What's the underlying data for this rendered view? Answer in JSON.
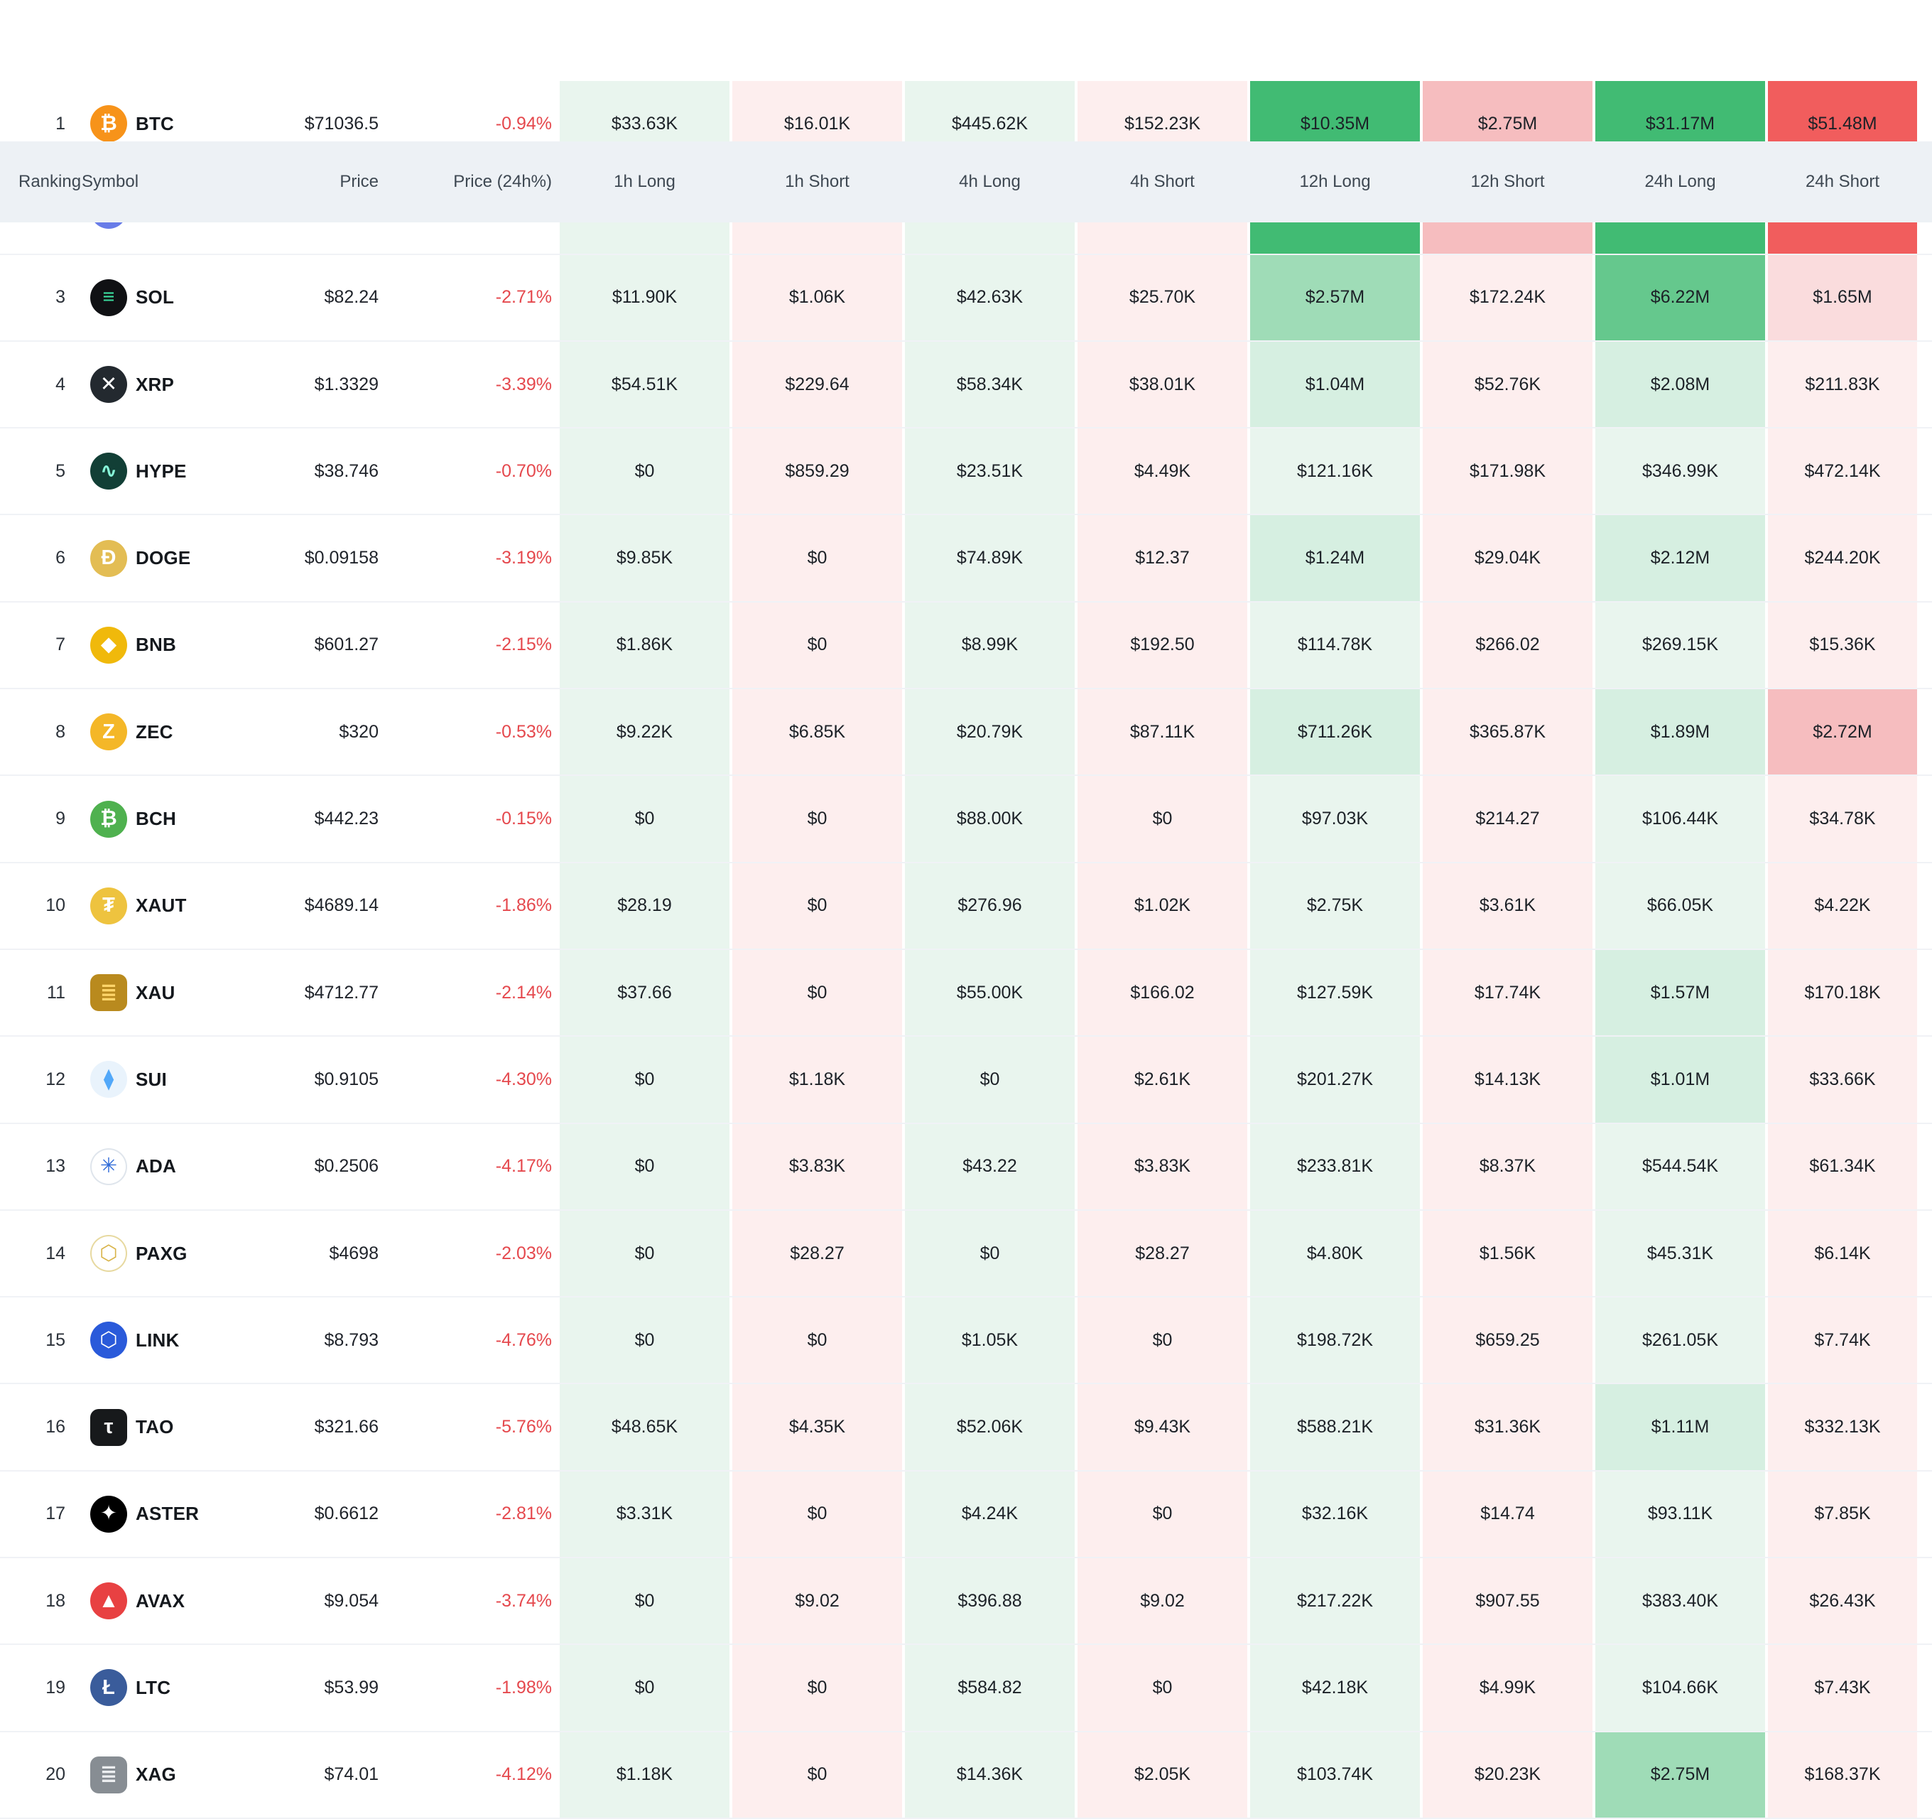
{
  "colors": {
    "long_base": "#e9f5ee",
    "long_strong": "#41bb73",
    "short_base": "#fdeeee",
    "short_strong": "#f15d5d",
    "negative_change": "#e5484d",
    "header_bg": "#edf1f5"
  },
  "columns": [
    {
      "key": "ranking",
      "label": "Ranking"
    },
    {
      "key": "symbol",
      "label": "Symbol"
    },
    {
      "key": "price",
      "label": "Price"
    },
    {
      "key": "change",
      "label": "Price (24h%)"
    },
    {
      "key": "1h-long",
      "label": "1h Long"
    },
    {
      "key": "1h-short",
      "label": "1h Short"
    },
    {
      "key": "4h-long",
      "label": "4h Long"
    },
    {
      "key": "4h-short",
      "label": "4h Short"
    },
    {
      "key": "12h-long",
      "label": "12h Long"
    },
    {
      "key": "12h-short",
      "label": "12h Short"
    },
    {
      "key": "24h-long",
      "label": "24h Long"
    },
    {
      "key": "24h-short",
      "label": "24h Short"
    }
  ],
  "rows": [
    {
      "rank": "1",
      "symbol": "BTC",
      "icon": {
        "shape": "circle",
        "bg": "#f7931a",
        "fg": "#ffffff",
        "glyph": "₿"
      },
      "price": "$71036.5",
      "change": "-0.94%",
      "cells": [
        {
          "v": "$33.63K",
          "c": "g0"
        },
        {
          "v": "$16.01K",
          "c": "r0"
        },
        {
          "v": "$445.62K",
          "c": "g0"
        },
        {
          "v": "$152.23K",
          "c": "r0"
        },
        {
          "v": "$10.35M",
          "c": "g4"
        },
        {
          "v": "$2.75M",
          "c": "r2"
        },
        {
          "v": "$31.17M",
          "c": "g4"
        },
        {
          "v": "$51.48M",
          "c": "r4"
        }
      ]
    },
    {
      "rank": "",
      "symbol": "",
      "icon": {
        "shape": "circle",
        "bg": "#687ce8",
        "fg": "#ffffff",
        "glyph": ""
      },
      "price": "",
      "change": "",
      "cells": [
        {
          "v": "",
          "c": "g0"
        },
        {
          "v": "",
          "c": "r0"
        },
        {
          "v": "",
          "c": "g0"
        },
        {
          "v": "",
          "c": "r0"
        },
        {
          "v": "",
          "c": "g4"
        },
        {
          "v": "",
          "c": "r2"
        },
        {
          "v": "",
          "c": "g4"
        },
        {
          "v": "",
          "c": "r4"
        }
      ]
    },
    {
      "rank": "3",
      "symbol": "SOL",
      "icon": {
        "shape": "circle",
        "bg": "#101114",
        "fg": "#3be0a0",
        "glyph": "≡"
      },
      "price": "$82.24",
      "change": "-2.71%",
      "cells": [
        {
          "v": "$11.90K",
          "c": "g0"
        },
        {
          "v": "$1.06K",
          "c": "r0"
        },
        {
          "v": "$42.63K",
          "c": "g0"
        },
        {
          "v": "$25.70K",
          "c": "r0"
        },
        {
          "v": "$2.57M",
          "c": "g2"
        },
        {
          "v": "$172.24K",
          "c": "r0"
        },
        {
          "v": "$6.22M",
          "c": "g3"
        },
        {
          "v": "$1.65M",
          "c": "r1"
        }
      ]
    },
    {
      "rank": "4",
      "symbol": "XRP",
      "icon": {
        "shape": "circle",
        "bg": "#23292f",
        "fg": "#ffffff",
        "glyph": "✕"
      },
      "price": "$1.3329",
      "change": "-3.39%",
      "cells": [
        {
          "v": "$54.51K",
          "c": "g0"
        },
        {
          "v": "$229.64",
          "c": "r0"
        },
        {
          "v": "$58.34K",
          "c": "g0"
        },
        {
          "v": "$38.01K",
          "c": "r0"
        },
        {
          "v": "$1.04M",
          "c": "g1"
        },
        {
          "v": "$52.76K",
          "c": "r0"
        },
        {
          "v": "$2.08M",
          "c": "g1"
        },
        {
          "v": "$211.83K",
          "c": "r0"
        }
      ]
    },
    {
      "rank": "5",
      "symbol": "HYPE",
      "icon": {
        "shape": "circle",
        "bg": "#123f36",
        "fg": "#87f5d8",
        "glyph": "∿"
      },
      "price": "$38.746",
      "change": "-0.70%",
      "cells": [
        {
          "v": "$0",
          "c": "g0"
        },
        {
          "v": "$859.29",
          "c": "r0"
        },
        {
          "v": "$23.51K",
          "c": "g0"
        },
        {
          "v": "$4.49K",
          "c": "r0"
        },
        {
          "v": "$121.16K",
          "c": "g0"
        },
        {
          "v": "$171.98K",
          "c": "r0"
        },
        {
          "v": "$346.99K",
          "c": "g0"
        },
        {
          "v": "$472.14K",
          "c": "r0"
        }
      ]
    },
    {
      "rank": "6",
      "symbol": "DOGE",
      "icon": {
        "shape": "circle",
        "bg": "#e3bd54",
        "fg": "#ffffff",
        "glyph": "Ð"
      },
      "price": "$0.09158",
      "change": "-3.19%",
      "cells": [
        {
          "v": "$9.85K",
          "c": "g0"
        },
        {
          "v": "$0",
          "c": "r0"
        },
        {
          "v": "$74.89K",
          "c": "g0"
        },
        {
          "v": "$12.37",
          "c": "r0"
        },
        {
          "v": "$1.24M",
          "c": "g1"
        },
        {
          "v": "$29.04K",
          "c": "r0"
        },
        {
          "v": "$2.12M",
          "c": "g1"
        },
        {
          "v": "$244.20K",
          "c": "r0"
        }
      ]
    },
    {
      "rank": "7",
      "symbol": "BNB",
      "icon": {
        "shape": "circle",
        "bg": "#f0b90b",
        "fg": "#ffffff",
        "glyph": "◆"
      },
      "price": "$601.27",
      "change": "-2.15%",
      "cells": [
        {
          "v": "$1.86K",
          "c": "g0"
        },
        {
          "v": "$0",
          "c": "r0"
        },
        {
          "v": "$8.99K",
          "c": "g0"
        },
        {
          "v": "$192.50",
          "c": "r0"
        },
        {
          "v": "$114.78K",
          "c": "g0"
        },
        {
          "v": "$266.02",
          "c": "r0"
        },
        {
          "v": "$269.15K",
          "c": "g0"
        },
        {
          "v": "$15.36K",
          "c": "r0"
        }
      ]
    },
    {
      "rank": "8",
      "symbol": "ZEC",
      "icon": {
        "shape": "circle",
        "bg": "#f4b728",
        "fg": "#ffffff",
        "glyph": "Z"
      },
      "price": "$320",
      "change": "-0.53%",
      "cells": [
        {
          "v": "$9.22K",
          "c": "g0"
        },
        {
          "v": "$6.85K",
          "c": "r0"
        },
        {
          "v": "$20.79K",
          "c": "g0"
        },
        {
          "v": "$87.11K",
          "c": "r0"
        },
        {
          "v": "$711.26K",
          "c": "g1"
        },
        {
          "v": "$365.87K",
          "c": "r0"
        },
        {
          "v": "$1.89M",
          "c": "g1"
        },
        {
          "v": "$2.72M",
          "c": "r2"
        }
      ]
    },
    {
      "rank": "9",
      "symbol": "BCH",
      "icon": {
        "shape": "circle",
        "bg": "#4fb14f",
        "fg": "#ffffff",
        "glyph": "₿"
      },
      "price": "$442.23",
      "change": "-0.15%",
      "cells": [
        {
          "v": "$0",
          "c": "g0"
        },
        {
          "v": "$0",
          "c": "r0"
        },
        {
          "v": "$88.00K",
          "c": "g0"
        },
        {
          "v": "$0",
          "c": "r0"
        },
        {
          "v": "$97.03K",
          "c": "g0"
        },
        {
          "v": "$214.27",
          "c": "r0"
        },
        {
          "v": "$106.44K",
          "c": "g0"
        },
        {
          "v": "$34.78K",
          "c": "r0"
        }
      ]
    },
    {
      "rank": "10",
      "symbol": "XAUT",
      "icon": {
        "shape": "circle",
        "bg": "#eec33f",
        "fg": "#ffffff",
        "glyph": "₮"
      },
      "price": "$4689.14",
      "change": "-1.86%",
      "cells": [
        {
          "v": "$28.19",
          "c": "g0"
        },
        {
          "v": "$0",
          "c": "r0"
        },
        {
          "v": "$276.96",
          "c": "g0"
        },
        {
          "v": "$1.02K",
          "c": "r0"
        },
        {
          "v": "$2.75K",
          "c": "g0"
        },
        {
          "v": "$3.61K",
          "c": "r0"
        },
        {
          "v": "$66.05K",
          "c": "g0"
        },
        {
          "v": "$4.22K",
          "c": "r0"
        }
      ]
    },
    {
      "rank": "11",
      "symbol": "XAU",
      "icon": {
        "shape": "square",
        "bg": "#b98a1e",
        "fg": "#ffd56a",
        "glyph": "≣"
      },
      "price": "$4712.77",
      "change": "-2.14%",
      "cells": [
        {
          "v": "$37.66",
          "c": "g0"
        },
        {
          "v": "$0",
          "c": "r0"
        },
        {
          "v": "$55.00K",
          "c": "g0"
        },
        {
          "v": "$166.02",
          "c": "r0"
        },
        {
          "v": "$127.59K",
          "c": "g0"
        },
        {
          "v": "$17.74K",
          "c": "r0"
        },
        {
          "v": "$1.57M",
          "c": "g1"
        },
        {
          "v": "$170.18K",
          "c": "r0"
        }
      ]
    },
    {
      "rank": "12",
      "symbol": "SUI",
      "icon": {
        "shape": "circle",
        "bg": "#e9f3fc",
        "fg": "#52a8f9",
        "glyph": "⧫"
      },
      "price": "$0.9105",
      "change": "-4.30%",
      "cells": [
        {
          "v": "$0",
          "c": "g0"
        },
        {
          "v": "$1.18K",
          "c": "r0"
        },
        {
          "v": "$0",
          "c": "g0"
        },
        {
          "v": "$2.61K",
          "c": "r0"
        },
        {
          "v": "$201.27K",
          "c": "g0"
        },
        {
          "v": "$14.13K",
          "c": "r0"
        },
        {
          "v": "$1.01M",
          "c": "g1"
        },
        {
          "v": "$33.66K",
          "c": "r0"
        }
      ]
    },
    {
      "rank": "13",
      "symbol": "ADA",
      "icon": {
        "shape": "circle",
        "bg": "#ffffff",
        "fg": "#2f6bd8",
        "glyph": "✳",
        "border": "#dfe5ec"
      },
      "price": "$0.2506",
      "change": "-4.17%",
      "cells": [
        {
          "v": "$0",
          "c": "g0"
        },
        {
          "v": "$3.83K",
          "c": "r0"
        },
        {
          "v": "$43.22",
          "c": "g0"
        },
        {
          "v": "$3.83K",
          "c": "r0"
        },
        {
          "v": "$233.81K",
          "c": "g0"
        },
        {
          "v": "$8.37K",
          "c": "r0"
        },
        {
          "v": "$544.54K",
          "c": "g0"
        },
        {
          "v": "$61.34K",
          "c": "r0"
        }
      ]
    },
    {
      "rank": "14",
      "symbol": "PAXG",
      "icon": {
        "shape": "circle",
        "bg": "#ffffff",
        "fg": "#d9b44a",
        "glyph": "⬡",
        "border": "#e7d9a0"
      },
      "price": "$4698",
      "change": "-2.03%",
      "cells": [
        {
          "v": "$0",
          "c": "g0"
        },
        {
          "v": "$28.27",
          "c": "r0"
        },
        {
          "v": "$0",
          "c": "g0"
        },
        {
          "v": "$28.27",
          "c": "r0"
        },
        {
          "v": "$4.80K",
          "c": "g0"
        },
        {
          "v": "$1.56K",
          "c": "r0"
        },
        {
          "v": "$45.31K",
          "c": "g0"
        },
        {
          "v": "$6.14K",
          "c": "r0"
        }
      ]
    },
    {
      "rank": "15",
      "symbol": "LINK",
      "icon": {
        "shape": "circle",
        "bg": "#2a5ada",
        "fg": "#ffffff",
        "glyph": "⬡"
      },
      "price": "$8.793",
      "change": "-4.76%",
      "cells": [
        {
          "v": "$0",
          "c": "g0"
        },
        {
          "v": "$0",
          "c": "r0"
        },
        {
          "v": "$1.05K",
          "c": "g0"
        },
        {
          "v": "$0",
          "c": "r0"
        },
        {
          "v": "$198.72K",
          "c": "g0"
        },
        {
          "v": "$659.25",
          "c": "r0"
        },
        {
          "v": "$261.05K",
          "c": "g0"
        },
        {
          "v": "$7.74K",
          "c": "r0"
        }
      ]
    },
    {
      "rank": "16",
      "symbol": "TAO",
      "icon": {
        "shape": "square",
        "bg": "#17191b",
        "fg": "#ffffff",
        "glyph": "τ"
      },
      "price": "$321.66",
      "change": "-5.76%",
      "cells": [
        {
          "v": "$48.65K",
          "c": "g0"
        },
        {
          "v": "$4.35K",
          "c": "r0"
        },
        {
          "v": "$52.06K",
          "c": "g0"
        },
        {
          "v": "$9.43K",
          "c": "r0"
        },
        {
          "v": "$588.21K",
          "c": "g0"
        },
        {
          "v": "$31.36K",
          "c": "r0"
        },
        {
          "v": "$1.11M",
          "c": "g1"
        },
        {
          "v": "$332.13K",
          "c": "r0"
        }
      ]
    },
    {
      "rank": "17",
      "symbol": "ASTER",
      "icon": {
        "shape": "circle",
        "bg": "#000000",
        "fg": "#ffffff",
        "glyph": "✦"
      },
      "price": "$0.6612",
      "change": "-2.81%",
      "cells": [
        {
          "v": "$3.31K",
          "c": "g0"
        },
        {
          "v": "$0",
          "c": "r0"
        },
        {
          "v": "$4.24K",
          "c": "g0"
        },
        {
          "v": "$0",
          "c": "r0"
        },
        {
          "v": "$32.16K",
          "c": "g0"
        },
        {
          "v": "$14.74",
          "c": "r0"
        },
        {
          "v": "$93.11K",
          "c": "g0"
        },
        {
          "v": "$7.85K",
          "c": "r0"
        }
      ]
    },
    {
      "rank": "18",
      "symbol": "AVAX",
      "icon": {
        "shape": "circle",
        "bg": "#e84142",
        "fg": "#ffffff",
        "glyph": "▲"
      },
      "price": "$9.054",
      "change": "-3.74%",
      "cells": [
        {
          "v": "$0",
          "c": "g0"
        },
        {
          "v": "$9.02",
          "c": "r0"
        },
        {
          "v": "$396.88",
          "c": "g0"
        },
        {
          "v": "$9.02",
          "c": "r0"
        },
        {
          "v": "$217.22K",
          "c": "g0"
        },
        {
          "v": "$907.55",
          "c": "r0"
        },
        {
          "v": "$383.40K",
          "c": "g0"
        },
        {
          "v": "$26.43K",
          "c": "r0"
        }
      ]
    },
    {
      "rank": "19",
      "symbol": "LTC",
      "icon": {
        "shape": "circle",
        "bg": "#3a5c9b",
        "fg": "#ffffff",
        "glyph": "Ł"
      },
      "price": "$53.99",
      "change": "-1.98%",
      "cells": [
        {
          "v": "$0",
          "c": "g0"
        },
        {
          "v": "$0",
          "c": "r0"
        },
        {
          "v": "$584.82",
          "c": "g0"
        },
        {
          "v": "$0",
          "c": "r0"
        },
        {
          "v": "$42.18K",
          "c": "g0"
        },
        {
          "v": "$4.99K",
          "c": "r0"
        },
        {
          "v": "$104.66K",
          "c": "g0"
        },
        {
          "v": "$7.43K",
          "c": "r0"
        }
      ]
    },
    {
      "rank": "20",
      "symbol": "XAG",
      "icon": {
        "shape": "square",
        "bg": "#878d93",
        "fg": "#eceef0",
        "glyph": "≣"
      },
      "price": "$74.01",
      "change": "-4.12%",
      "cells": [
        {
          "v": "$1.18K",
          "c": "g0"
        },
        {
          "v": "$0",
          "c": "r0"
        },
        {
          "v": "$14.36K",
          "c": "g0"
        },
        {
          "v": "$2.05K",
          "c": "r0"
        },
        {
          "v": "$103.74K",
          "c": "g0"
        },
        {
          "v": "$20.23K",
          "c": "r0"
        },
        {
          "v": "$2.75M",
          "c": "g2"
        },
        {
          "v": "$168.37K",
          "c": "r0"
        }
      ]
    }
  ]
}
